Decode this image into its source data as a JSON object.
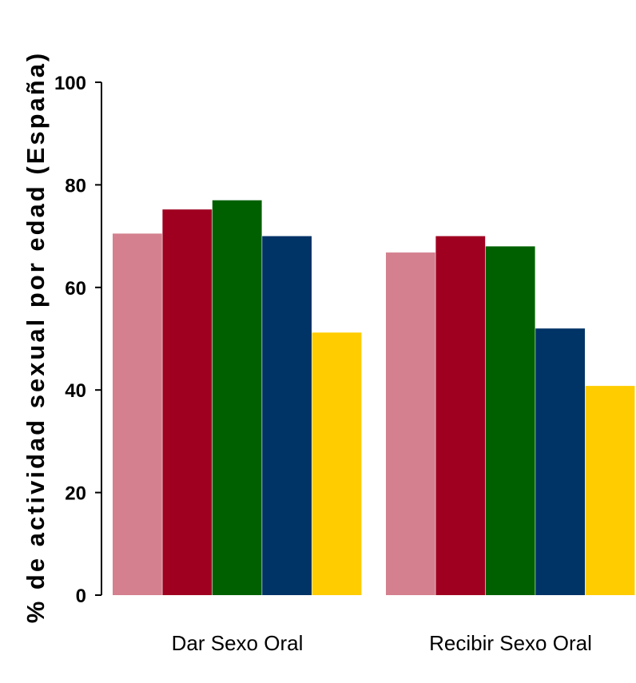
{
  "chart_data": {
    "type": "bar",
    "title": "",
    "xlabel": "",
    "ylabel": "% de actividad sexual por edad (España)",
    "ylim": [
      0,
      100
    ],
    "yticks": [
      0,
      20,
      40,
      60,
      80,
      100
    ],
    "grid": false,
    "legend": "none",
    "categories": [
      "Dar Sexo Oral",
      "Recibir Sexo Oral"
    ],
    "series": [
      {
        "color": "#D4808E",
        "values": [
          70.5,
          66.8
        ]
      },
      {
        "color": "#A00020",
        "values": [
          75.2,
          70.0
        ]
      },
      {
        "color": "#006000",
        "values": [
          77.0,
          68.0
        ]
      },
      {
        "color": "#003366",
        "values": [
          70.0,
          52.0
        ]
      },
      {
        "color": "#FFCC00",
        "values": [
          51.2,
          40.8
        ]
      }
    ]
  }
}
